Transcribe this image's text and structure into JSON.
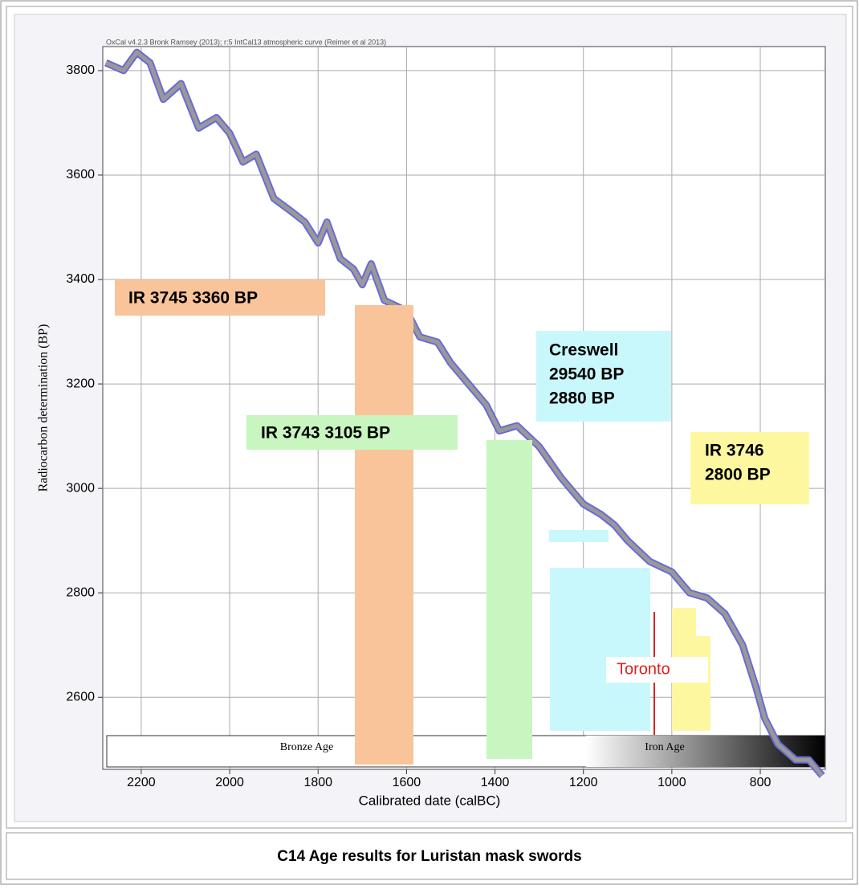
{
  "chart_data": {
    "type": "line",
    "header": "OxCal v4.2.3 Bronk Ramsey (2013); r:5 IntCal13 atmospheric curve (Reimer et al 2013)",
    "xlabel": "Calibrated date (calBC)",
    "ylabel": "Radiocarbon determination (BP)",
    "x": [
      2280,
      2240,
      2210,
      2180,
      2150,
      2110,
      2070,
      2030,
      2000,
      1970,
      1940,
      1900,
      1860,
      1830,
      1800,
      1780,
      1750,
      1720,
      1700,
      1680,
      1650,
      1600,
      1570,
      1530,
      1500,
      1460,
      1420,
      1390,
      1350,
      1300,
      1250,
      1200,
      1160,
      1130,
      1100,
      1050,
      1000,
      960,
      920,
      880,
      840,
      810,
      790,
      760,
      720,
      690,
      660
    ],
    "series": [
      {
        "name": "IntCal13",
        "color": "#6a6ad8",
        "values": [
          3815,
          3800,
          3835,
          3815,
          3745,
          3775,
          3690,
          3710,
          3680,
          3625,
          3640,
          3555,
          3530,
          3510,
          3470,
          3510,
          3440,
          3420,
          3390,
          3430,
          3360,
          3340,
          3290,
          3280,
          3240,
          3200,
          3160,
          3110,
          3120,
          3080,
          3020,
          2970,
          2950,
          2930,
          2900,
          2860,
          2840,
          2800,
          2790,
          2760,
          2700,
          2620,
          2560,
          2510,
          2480,
          2480,
          2450
        ]
      }
    ],
    "xlim": [
      2287,
      653
    ],
    "ylim": [
      2462,
      3846
    ],
    "xticks": [
      2200,
      2000,
      1800,
      1600,
      1400,
      1200,
      1000,
      800
    ],
    "yticks": [
      2600,
      2800,
      3000,
      3200,
      3400,
      3600,
      3800
    ],
    "grid": true,
    "periods": [
      "Bronze Age",
      "Iron Age"
    ],
    "annotations": [
      {
        "lines": [
          "IR 3745  3360 BP"
        ]
      },
      {
        "lines": [
          "IR 3743  3105 BP"
        ]
      },
      {
        "lines": [
          "Creswell",
          "29540 BP",
          "2880 BP"
        ]
      },
      {
        "lines": [
          "IR 3746",
          "2800 BP"
        ]
      },
      {
        "lines": [
          "Toronto"
        ]
      }
    ],
    "caption": "C14 Age results for Luristan mask swords"
  }
}
